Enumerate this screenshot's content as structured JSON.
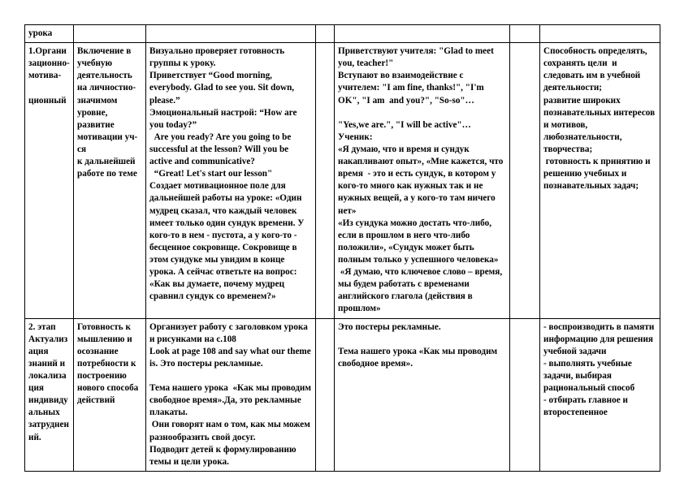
{
  "header": {
    "c1": "урока"
  },
  "r1": {
    "c1": "1.Организационно- мотива-\n\nционный",
    "c2": "Включение в учебную деятельность на личностно- значимом уровне, развитие мотивации уч-ся\nк дальнейшей работе по теме",
    "c3": "Визуально проверяет готовность группы к уроку.\nПриветствует “Good morning, everybody. Glad to see you. Sit down, please.”\nЭмоциональный настрой: “How are you today?”\n  Are you ready? Are you going to be successful at the lesson? Will you be active and communicative?\n  “Great! Let's start our lesson\"\nСоздает мотивационное поле для дальнейшей работы на уроке: «Один мудрец сказал, что каждый человек имеет только один сундук времени. У кого-то в нем - пустота, а у кого-то - бесценное сокровище. Сокровище в этом сундуке мы увидим в конце урока. А сейчас ответьте на вопрос: «Как вы думаете, почему мудрец сравнил сундук со временем?»",
    "c5": "Приветствуют учителя: \"Glad to meet you, teacher!\"\nВступают во взаимодействие с учителем: \"I am fine, thanks!\", \"I'm OK\", \"I am  and you?\", \"So-so\"…\n\n\"Yes,we are.\", \"I will be active\"…\nУченик:\n«Я думаю, что и время и сундук накапливают опыт», «Мне кажется, что время  - это и есть сундук, в котором у кого-то много как нужных так и не нужных вещей, а у кого-то там ничего нет»\n«Из сундука можно достать что-либо, если в прошлом в него что-либо положили», «Сундук может быть полным только у успешного человека»\n «Я думаю, что ключевое слово – время, мы будем работать с временами английского глагола (действия в прошлом»",
    "c7": "Способность определять, сохранять цели  и следовать им в учебной деятельности;\nразвитие широких познавательных интересов и мотивов, любознательности, творчества;\n готовность к принятию и решению учебных и познавательных задач;"
  },
  "r2": {
    "c1": "2. этап Актуализация знаний и локализация  индивидуальных затруднений.",
    "c2": "Готовность к мышлению и осознание потребности к построению нового способа действий",
    "c3": "Организует работу с заголовком урока и рисунками на с.108\nLook at page 108 and say what our theme is. Это постеры рекламные.\n\nТема нашего урока  «Как мы проводим свободное время».Да, это рекламные плакаты.\n Они говорят нам о том, как мы можем разнообразить свой досуг.\nПодводит детей к формулированию темы и цели урока.",
    "c5": "Это постеры рекламные.\n\nТема нашего урока «Как мы проводим свободное время».",
    "c7": "- воспроизводить в памяти информацию для решения учебной задачи\n- выполнять учебные задачи, выбирая рациональный способ\n- отбирать главное и второстепенное"
  }
}
